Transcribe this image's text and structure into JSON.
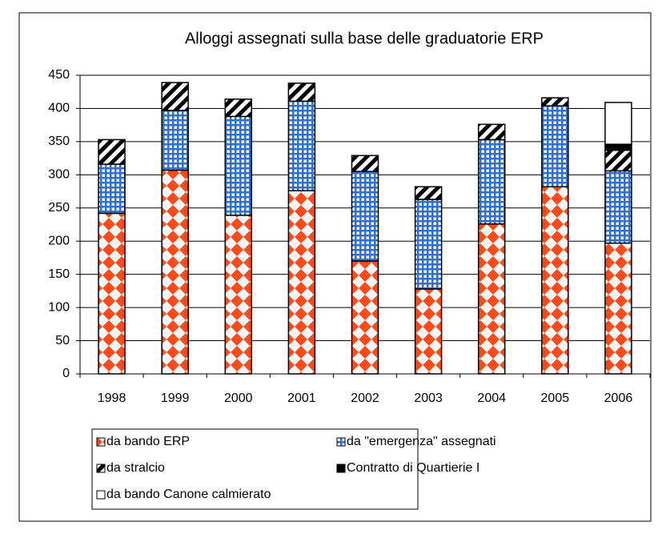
{
  "chart_data": {
    "type": "stacked_bar",
    "title": "Alloggi assegnati sulla base delle graduatorie ERP",
    "categories": [
      "1998",
      "1999",
      "2000",
      "2001",
      "2002",
      "2003",
      "2004",
      "2005",
      "2006"
    ],
    "series": [
      {
        "name": "da bando ERP",
        "color": "#ff4a1c",
        "pattern": "diamond",
        "values": [
          242,
          307,
          239,
          276,
          170,
          128,
          226,
          282,
          197
        ]
      },
      {
        "name": "da \"emergenza\" assegnati",
        "color": "#2f6fd0",
        "pattern": "grid",
        "values": [
          74,
          90,
          149,
          135,
          135,
          135,
          127,
          122,
          109
        ]
      },
      {
        "name": "da stralcio",
        "color": "#000000",
        "pattern": "diagonal",
        "values": [
          37,
          42,
          26,
          27,
          24,
          19,
          23,
          12,
          31
        ]
      },
      {
        "name": "Contratto di Quartierie I",
        "color": "#000000",
        "pattern": "solid",
        "values": [
          0,
          0,
          0,
          0,
          0,
          0,
          0,
          0,
          9
        ]
      },
      {
        "name": "da bando Canone calmierato",
        "color": "#ffffff",
        "pattern": "solid",
        "values": [
          0,
          0,
          0,
          0,
          0,
          0,
          0,
          0,
          63
        ]
      }
    ],
    "ylim": [
      0,
      450
    ],
    "yticks": [
      0,
      50,
      100,
      150,
      200,
      250,
      300,
      350,
      400,
      450
    ],
    "grid": true
  }
}
